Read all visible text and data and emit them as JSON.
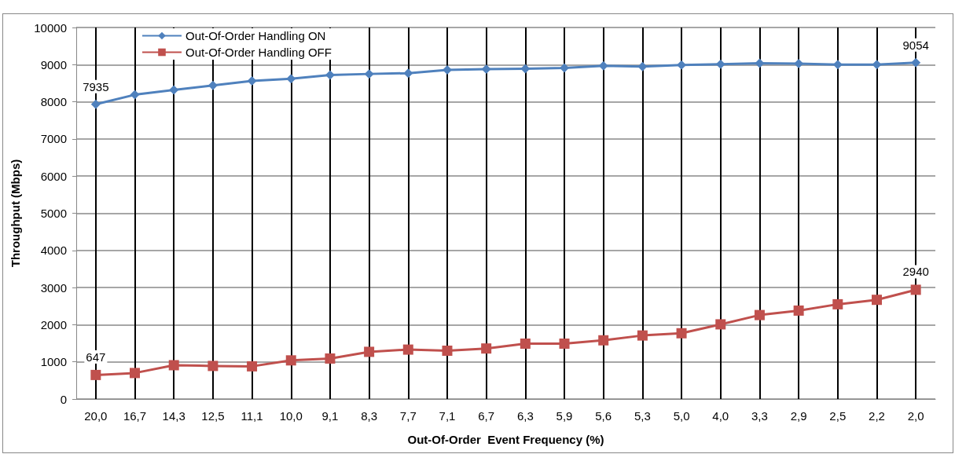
{
  "chart_data": {
    "type": "line",
    "xlabel": "Out-Of-Order  Event Frequency (%)",
    "ylabel": "Throughput (Mbps)",
    "categories": [
      "20,0",
      "16,7",
      "14,3",
      "12,5",
      "11,1",
      "10,0",
      "9,1",
      "8,3",
      "7,7",
      "7,1",
      "6,7",
      "6,3",
      "5,9",
      "5,6",
      "5,3",
      "5,0",
      "4,0",
      "3,3",
      "2,9",
      "2,5",
      "2,2",
      "2,0"
    ],
    "series": [
      {
        "name": "Out-Of-Order Handling ON",
        "color": "#4f81bd",
        "marker": "diamond",
        "values": [
          7935,
          8190,
          8320,
          8440,
          8560,
          8620,
          8720,
          8750,
          8770,
          8860,
          8880,
          8890,
          8910,
          8970,
          8950,
          8990,
          9010,
          9040,
          9030,
          9000,
          9000,
          9054
        ],
        "value_labels": [
          "7935",
          null,
          null,
          null,
          null,
          null,
          null,
          null,
          null,
          null,
          null,
          null,
          null,
          null,
          null,
          null,
          null,
          null,
          null,
          null,
          null,
          "9054"
        ]
      },
      {
        "name": "Out-Of-Order Handling OFF",
        "color": "#c0504d",
        "marker": "square",
        "values": [
          647,
          700,
          910,
          890,
          880,
          1040,
          1090,
          1270,
          1330,
          1300,
          1360,
          1490,
          1490,
          1580,
          1710,
          1770,
          2010,
          2260,
          2380,
          2550,
          2670,
          2940
        ],
        "value_labels": [
          "647",
          null,
          null,
          null,
          null,
          null,
          null,
          null,
          null,
          null,
          null,
          null,
          null,
          null,
          null,
          null,
          null,
          null,
          null,
          null,
          null,
          "2940"
        ]
      }
    ],
    "ylim": [
      0,
      10000
    ],
    "yticks": [
      0,
      1000,
      2000,
      3000,
      4000,
      5000,
      6000,
      7000,
      8000,
      9000,
      10000
    ],
    "grid": true,
    "legend": "top left",
    "line_style": "solid"
  }
}
